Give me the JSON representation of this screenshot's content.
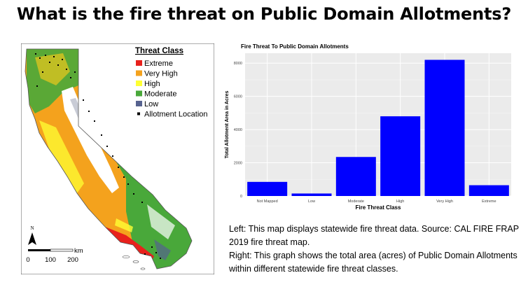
{
  "title": "What is the fire threat on Public Domain Allotments?",
  "map": {
    "legend_title": "Threat Class",
    "legend_items": [
      {
        "label": "Extreme",
        "color": "#e8211c"
      },
      {
        "label": "Very High",
        "color": "#f4a21d"
      },
      {
        "label": "High",
        "color": "#ffff33"
      },
      {
        "label": "Moderate",
        "color": "#49a83a"
      },
      {
        "label": "Low",
        "color": "#56628f"
      },
      {
        "label": "Allotment Location",
        "color": "#000000"
      }
    ],
    "north_label": "N",
    "scale_unit": "km",
    "scale_ticks": [
      "0",
      "100",
      "200"
    ]
  },
  "chart_data": {
    "type": "bar",
    "title": "Fire Threat To Public Domain Allotments",
    "xlabel": "Fire Threat Class",
    "ylabel": "Total Allotment Area in Acres",
    "categories": [
      "Not Mapped",
      "Low",
      "Moderate",
      "High",
      "Very High",
      "Extreme"
    ],
    "values": [
      850,
      150,
      2350,
      4800,
      8200,
      650
    ],
    "ylim": [
      0,
      8600
    ],
    "yticks": [
      0,
      2000,
      4000,
      6000,
      8000
    ],
    "bar_color": "#0000ff",
    "grid": true
  },
  "caption": {
    "line1": "Left: This map displays statewide fire threat data. Source: CAL FIRE FRAP 2019 fire threat map.",
    "line2": "Right: This graph shows the total area (acres) of Public Domain Allotments within different statewide fire threat classes."
  }
}
